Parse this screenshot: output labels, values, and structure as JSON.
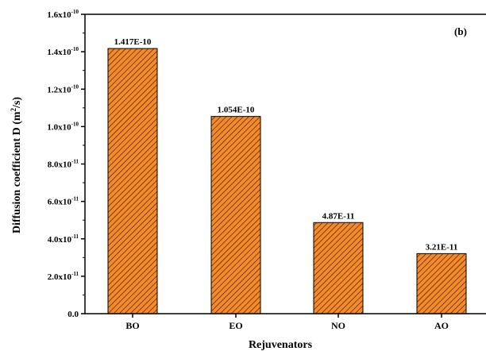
{
  "chart_data": {
    "type": "bar",
    "categories": [
      "BO",
      "EO",
      "NO",
      "AO"
    ],
    "values": [
      1.417e-10,
      1.054e-10,
      4.87e-11,
      3.21e-11
    ],
    "data_labels": [
      "1.417E-10",
      "1.054E-10",
      "4.87E-11",
      "3.21E-11"
    ],
    "xlabel": "Rejuvenators",
    "ylabel": {
      "prefix": "Diffusion coefficient D (m",
      "sup": "2",
      "suffix": "/s)"
    },
    "panel_label": "(b)",
    "ylim": [
      0,
      1.6e-10
    ],
    "yticks": [
      {
        "value": 0,
        "mantissa": "0.0",
        "exp": ""
      },
      {
        "value": 2e-11,
        "mantissa": "2.0x10",
        "exp": "-11"
      },
      {
        "value": 4e-11,
        "mantissa": "4.0x10",
        "exp": "-11"
      },
      {
        "value": 6e-11,
        "mantissa": "6.0x10",
        "exp": "-11"
      },
      {
        "value": 8e-11,
        "mantissa": "8.0x10",
        "exp": "-11"
      },
      {
        "value": 1e-10,
        "mantissa": "1.0x10",
        "exp": "-10"
      },
      {
        "value": 1.2e-10,
        "mantissa": "1.2x10",
        "exp": "-10"
      },
      {
        "value": 1.4e-10,
        "mantissa": "1.4x10",
        "exp": "-10"
      },
      {
        "value": 1.6e-10,
        "mantissa": "1.6x10",
        "exp": "-10"
      }
    ],
    "bar_color": "#f58a2a",
    "hatch_color": "#3a1a05",
    "grid": false,
    "legend": "none"
  }
}
